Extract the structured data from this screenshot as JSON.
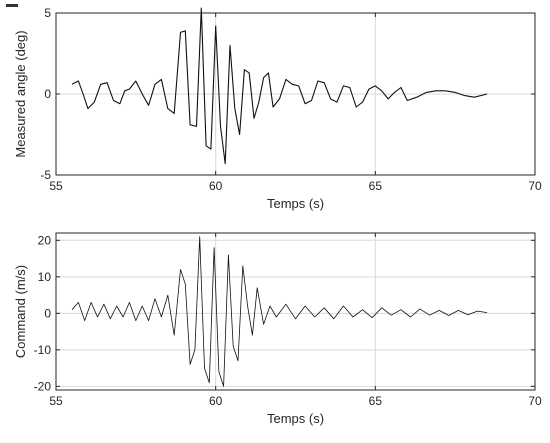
{
  "chart_data": [
    {
      "type": "line",
      "title": "",
      "xlabel": "Temps (s)",
      "ylabel": "Measured angle (deg)",
      "xlim": [
        55,
        70
      ],
      "ylim": [
        -5,
        5
      ],
      "xticks": [
        55,
        60,
        65,
        70
      ],
      "yticks": [
        -5,
        0,
        5
      ],
      "grid": true,
      "series": [
        {
          "x": [
            55.5,
            55.7,
            55.85,
            56.0,
            56.2,
            56.4,
            56.6,
            56.8,
            57.0,
            57.15,
            57.3,
            57.5,
            57.7,
            57.9,
            58.1,
            58.3,
            58.5,
            58.7,
            58.9,
            59.05,
            59.2,
            59.4,
            59.55,
            59.7,
            59.85,
            60.0,
            60.15,
            60.3,
            60.45,
            60.6,
            60.75,
            60.9,
            61.05,
            61.2,
            61.35,
            61.5,
            61.65,
            61.8,
            62.0,
            62.2,
            62.4,
            62.6,
            62.8,
            63.0,
            63.2,
            63.4,
            63.6,
            63.8,
            64.0,
            64.2,
            64.4,
            64.6,
            64.8,
            65.0,
            65.2,
            65.4,
            65.6,
            65.8,
            66.0,
            66.3,
            66.6,
            66.9,
            67.2,
            67.5,
            67.8,
            68.1,
            68.5
          ],
          "y": [
            0.6,
            0.8,
            0.0,
            -0.9,
            -0.5,
            0.6,
            0.7,
            -0.4,
            -0.6,
            0.2,
            0.3,
            0.8,
            0.0,
            -0.7,
            0.6,
            0.9,
            -0.9,
            -1.2,
            3.8,
            3.9,
            -1.9,
            -2.0,
            5.3,
            -3.2,
            -3.4,
            4.2,
            -2.0,
            -4.3,
            3.0,
            -0.9,
            -2.5,
            1.5,
            1.3,
            -1.5,
            -0.5,
            1.0,
            1.3,
            -0.8,
            -0.3,
            0.9,
            0.6,
            0.5,
            -0.6,
            -0.4,
            0.8,
            0.7,
            -0.3,
            -0.5,
            0.5,
            0.4,
            -0.8,
            -0.5,
            0.3,
            0.5,
            0.2,
            -0.3,
            0.1,
            0.4,
            -0.4,
            -0.2,
            0.1,
            0.2,
            0.2,
            0.1,
            -0.1,
            -0.2,
            0.0
          ]
        }
      ]
    },
    {
      "type": "line",
      "title": "",
      "xlabel": "Temps (s)",
      "ylabel": "Command (m/s)",
      "xlim": [
        55,
        70
      ],
      "ylim": [
        -21,
        22
      ],
      "xticks": [
        55,
        60,
        65,
        70
      ],
      "yticks": [
        -20,
        -10,
        0,
        10,
        20
      ],
      "grid": true,
      "series": [
        {
          "x": [
            55.5,
            55.7,
            55.9,
            56.1,
            56.3,
            56.5,
            56.7,
            56.9,
            57.1,
            57.3,
            57.5,
            57.7,
            57.9,
            58.1,
            58.3,
            58.5,
            58.7,
            58.9,
            59.05,
            59.2,
            59.35,
            59.5,
            59.65,
            59.8,
            59.95,
            60.1,
            60.25,
            60.4,
            60.55,
            60.7,
            60.85,
            61.0,
            61.15,
            61.3,
            61.5,
            61.7,
            61.9,
            62.2,
            62.5,
            62.8,
            63.1,
            63.4,
            63.7,
            64.0,
            64.3,
            64.6,
            64.9,
            65.2,
            65.5,
            65.8,
            66.1,
            66.4,
            66.7,
            67.0,
            67.3,
            67.6,
            67.9,
            68.2,
            68.5
          ],
          "y": [
            1.0,
            3.0,
            -2.0,
            3.0,
            -1.0,
            2.5,
            -1.5,
            2.0,
            -1.0,
            3.0,
            -2.0,
            2.0,
            -2.0,
            4.0,
            -1.0,
            5.0,
            -6.0,
            12.0,
            8.0,
            -14.0,
            -10.0,
            21.0,
            -15.0,
            -19.0,
            18.0,
            -16.0,
            -20.0,
            16.0,
            -9.0,
            -13.0,
            13.0,
            2.0,
            -6.0,
            7.0,
            -3.0,
            2.0,
            -1.0,
            2.5,
            -1.5,
            2.0,
            -1.0,
            1.5,
            -1.5,
            2.0,
            -1.0,
            1.0,
            -1.2,
            1.5,
            -0.5,
            1.0,
            -1.0,
            1.2,
            -0.5,
            0.8,
            -0.6,
            0.8,
            -0.4,
            0.6,
            0.2
          ]
        }
      ]
    }
  ]
}
